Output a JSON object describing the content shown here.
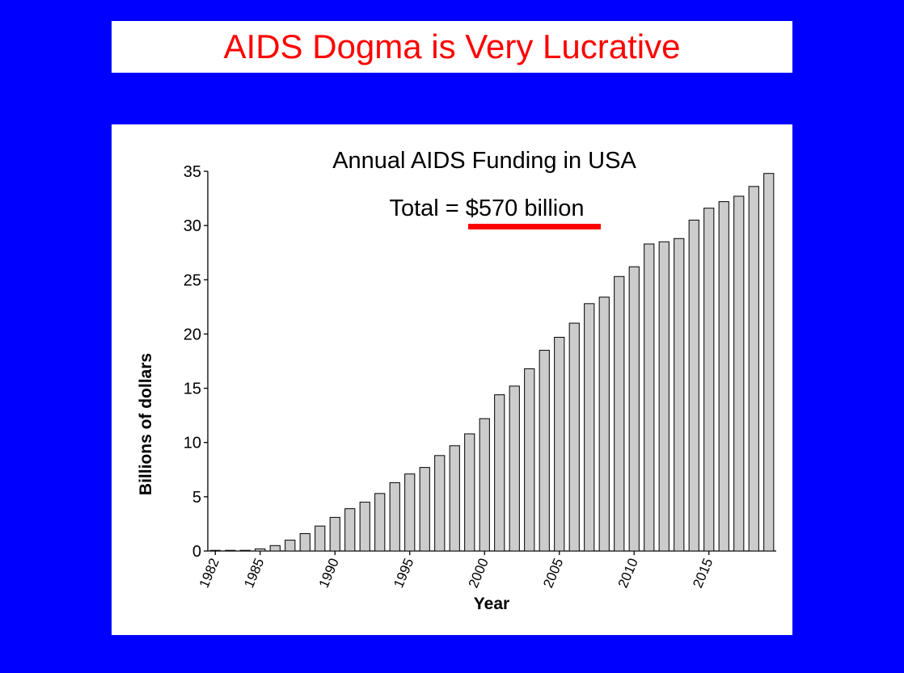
{
  "slide": {
    "title": "AIDS Dogma is Very Lucrative"
  },
  "colors": {
    "background": "#0000ff",
    "title_text": "#ff0000",
    "underline": "#ff0000",
    "bar_fill": "#cccccc",
    "bar_stroke": "#000000"
  },
  "chart_data": {
    "type": "bar",
    "title": "Annual AIDS Funding in USA",
    "subtitle_prefix": "Total = ",
    "subtitle_highlight": "$570 billion",
    "xlabel": "Year",
    "ylabel": "Billions of dollars",
    "ylim": [
      0,
      35
    ],
    "yticks": [
      0,
      5,
      10,
      15,
      20,
      25,
      30,
      35
    ],
    "xtick_labels": [
      "1982",
      "1985",
      "1990",
      "1995",
      "2000",
      "2005",
      "2010",
      "2015"
    ],
    "xtick_years": [
      1982,
      1985,
      1990,
      1995,
      2000,
      2005,
      2010,
      2015
    ],
    "categories": [
      1982,
      1983,
      1984,
      1985,
      1986,
      1987,
      1988,
      1989,
      1990,
      1991,
      1992,
      1993,
      1994,
      1995,
      1996,
      1997,
      1998,
      1999,
      2000,
      2001,
      2002,
      2003,
      2004,
      2005,
      2006,
      2007,
      2008,
      2009,
      2010,
      2011,
      2012,
      2013,
      2014,
      2015,
      2016,
      2017,
      2018,
      2019
    ],
    "values": [
      0.01,
      0.03,
      0.06,
      0.2,
      0.5,
      1.0,
      1.6,
      2.3,
      3.1,
      3.9,
      4.5,
      5.3,
      6.3,
      7.1,
      7.7,
      8.8,
      9.7,
      10.8,
      12.2,
      14.4,
      15.2,
      16.8,
      18.5,
      19.7,
      21.0,
      22.8,
      23.4,
      25.3,
      26.2,
      28.3,
      28.5,
      28.8,
      30.5,
      31.6,
      32.2,
      32.7,
      33.6,
      34.8
    ],
    "grid": false,
    "legend": "none"
  }
}
